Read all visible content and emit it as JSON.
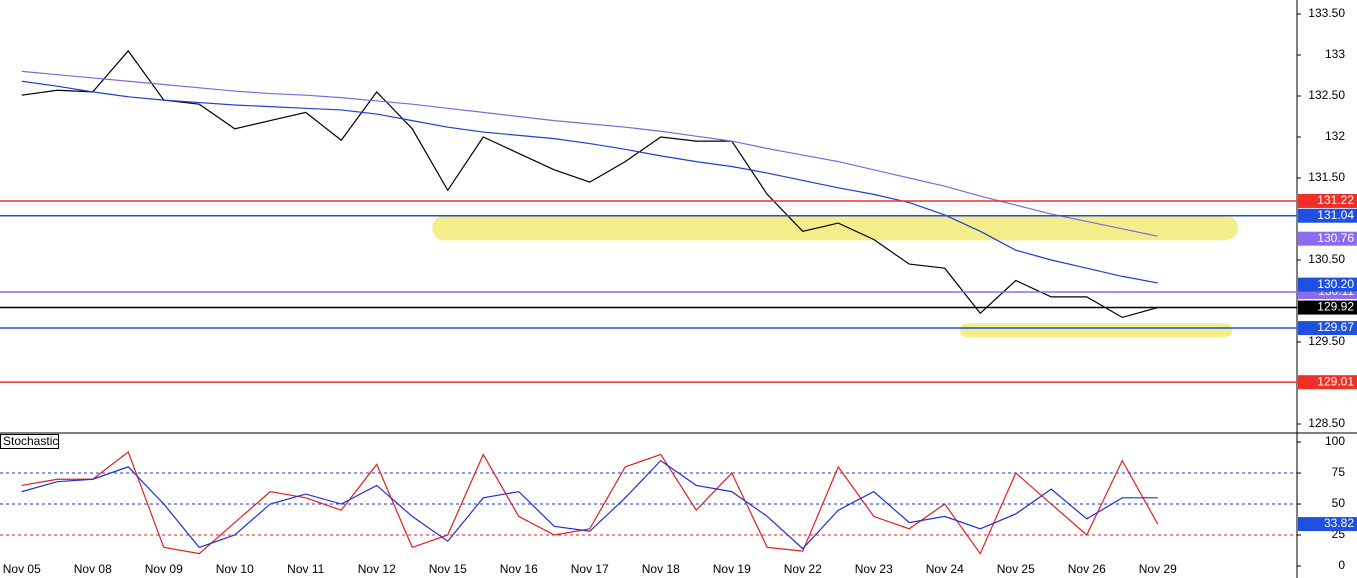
{
  "chart_data": [
    {
      "type": "line",
      "categories": [
        "Nov 05",
        null,
        "Nov 08",
        null,
        "Nov 09",
        null,
        "Nov 10",
        null,
        "Nov 11",
        null,
        "Nov 12",
        null,
        "Nov 15",
        null,
        "Nov 16",
        null,
        "Nov 17",
        null,
        "Nov 18",
        null,
        "Nov 19",
        null,
        "Nov 22",
        null,
        "Nov 23",
        null,
        "Nov 24",
        null,
        "Nov 25",
        null,
        "Nov 26",
        null,
        "Nov 29",
        null
      ],
      "series": [
        {
          "color": "#000000",
          "values": [
            132.51,
            132.57,
            132.55,
            133.05,
            132.45,
            132.4,
            132.1,
            132.2,
            132.3,
            131.96,
            132.55,
            132.1,
            131.35,
            132.0,
            131.8,
            131.6,
            131.45,
            131.7,
            132.0,
            131.95,
            131.95,
            131.3,
            130.85,
            130.95,
            130.75,
            130.45,
            130.4,
            129.85,
            130.25,
            130.05,
            130.05,
            129.8,
            129.92,
            null
          ]
        },
        {
          "color": "#1f3fd0",
          "values": [
            132.68,
            132.62,
            132.55,
            132.49,
            132.45,
            132.42,
            132.39,
            132.37,
            132.35,
            132.33,
            132.28,
            132.2,
            132.12,
            132.06,
            132.02,
            131.98,
            131.92,
            131.85,
            131.77,
            131.7,
            131.64,
            131.56,
            131.47,
            131.38,
            131.3,
            131.2,
            131.05,
            130.85,
            130.62,
            130.5,
            130.4,
            130.3,
            130.22,
            null
          ]
        },
        {
          "color": "#7a6ae0",
          "values": [
            132.8,
            132.76,
            132.72,
            132.68,
            132.64,
            132.6,
            132.56,
            132.53,
            132.51,
            132.48,
            132.44,
            132.4,
            132.35,
            132.3,
            132.25,
            132.2,
            132.16,
            132.12,
            132.07,
            132.01,
            131.95,
            131.86,
            131.78,
            131.7,
            131.6,
            131.5,
            131.4,
            131.28,
            131.17,
            131.06,
            130.97,
            130.88,
            130.79,
            null
          ]
        }
      ],
      "ylim": [
        128.45,
        133.6
      ],
      "yticks": [
        {
          "value": 128.5,
          "label": "128.50"
        },
        {
          "value": 129.5,
          "label": "129.50"
        },
        {
          "value": 130.5,
          "label": "130.50"
        },
        {
          "value": 131.5,
          "label": "131.50"
        },
        132,
        {
          "value": 132.5,
          "label": "132.50"
        },
        133,
        {
          "value": 133.5,
          "label": "133.50"
        }
      ],
      "zones": [
        {
          "x": [
            11.56,
            34.26
          ],
          "y": [
            130.74,
            131.04
          ],
          "color": "#f3ee8a"
        },
        {
          "x": [
            26.43,
            34.1
          ],
          "y": [
            129.56,
            129.73
          ],
          "color": "#f3ee8a"
        }
      ],
      "markers": [
        {
          "price": 131.22,
          "color": "#f03028",
          "line": true
        },
        {
          "price": 131.04,
          "color": "#1f50e0",
          "line": true
        },
        {
          "price": 130.76,
          "color": "#8a6cf0",
          "line": false
        },
        {
          "price": 130.11,
          "color": "#8a6cf0",
          "line": true
        },
        {
          "price": {
            "value": 130.2,
            "label": "130.20"
          },
          "color": "#1f50e0",
          "line": false
        },
        {
          "price": 129.92,
          "color": "#000000",
          "line": true
        },
        {
          "price": 129.67,
          "color": "#1f50e0",
          "line": true
        },
        {
          "price": 129.01,
          "color": "#f03028",
          "line": true
        }
      ]
    },
    {
      "type": "line",
      "title": "Stochastic",
      "series": [
        {
          "color": "#e02020",
          "values": [
            65,
            70,
            70,
            92,
            15,
            10,
            35,
            60,
            55,
            45,
            82,
            15,
            25,
            90,
            40,
            25,
            30,
            80,
            90,
            45,
            75,
            15,
            12,
            80,
            40,
            30,
            50,
            10,
            75,
            50,
            25,
            85,
            33.82,
            null
          ]
        },
        {
          "color": "#2030d0",
          "values": [
            60,
            68,
            70,
            80,
            50,
            15,
            25,
            50,
            58,
            50,
            65,
            40,
            20,
            55,
            60,
            32,
            28,
            55,
            85,
            65,
            60,
            40,
            14,
            45,
            60,
            35,
            40,
            30,
            42,
            62,
            38,
            55,
            55,
            null
          ]
        }
      ],
      "ylim": [
        -9.7,
        106.5
      ],
      "yticks": [
        0,
        25,
        50,
        75,
        100
      ],
      "levels": [
        {
          "value": 75,
          "color": "#2030d0"
        },
        {
          "value": 50,
          "color": "#2030d0"
        },
        {
          "value": 25,
          "color": "#e02020"
        }
      ],
      "markers": [
        {
          "price": 33.82,
          "color": "#1f50e0",
          "line": false
        }
      ]
    }
  ]
}
